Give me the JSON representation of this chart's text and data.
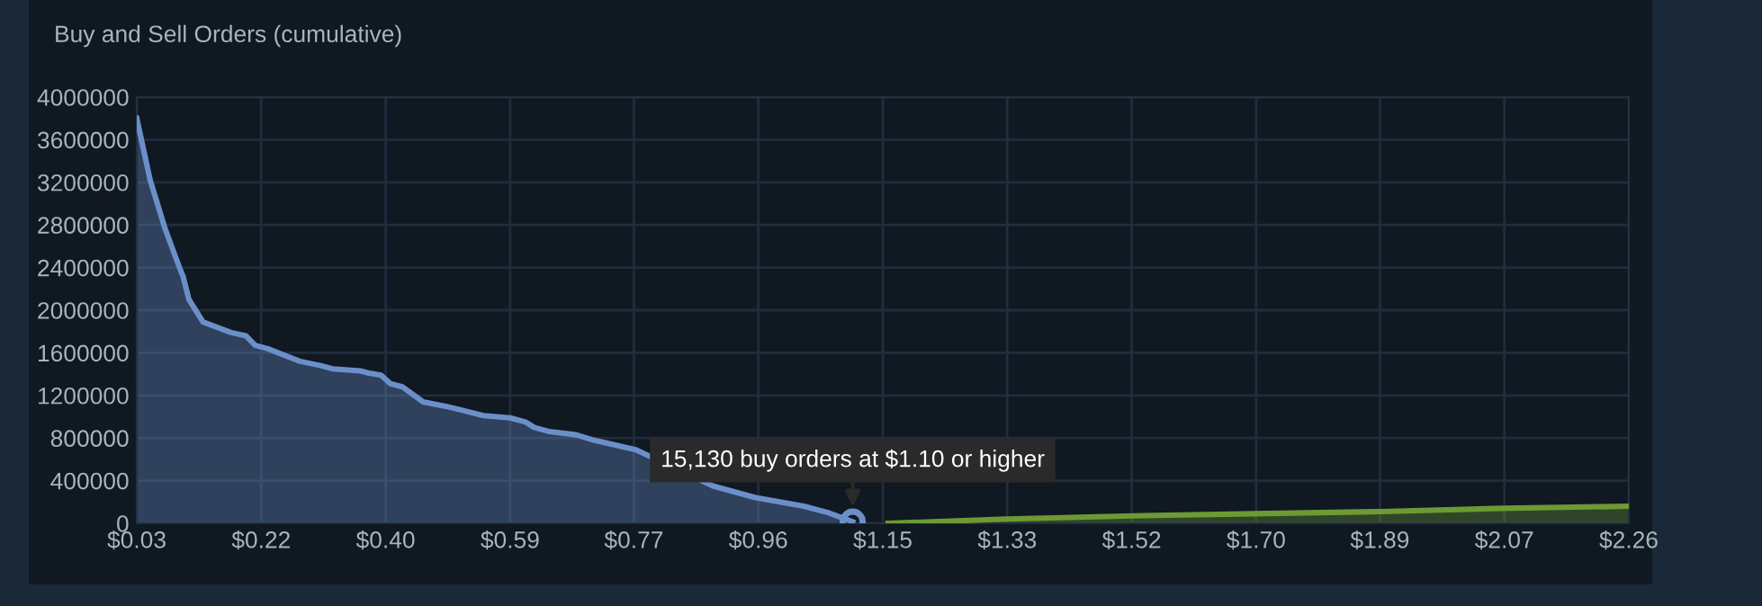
{
  "chart_data": {
    "type": "area",
    "title": "Buy and Sell Orders (cumulative)",
    "series": [
      {
        "color": "#6b8fc9",
        "x": [
          0.03,
          0.05,
          0.072,
          0.095,
          0.099,
          0.108,
          0.129,
          0.171,
          0.193,
          0.207,
          0.225,
          0.274,
          0.305,
          0.323,
          0.364,
          0.377,
          0.395,
          0.409,
          0.427,
          0.458,
          0.49,
          0.517,
          0.548,
          0.588,
          0.611,
          0.624,
          0.647,
          0.687,
          0.713,
          0.776,
          0.891,
          0.955,
          1.027,
          1.063,
          1.1
        ],
        "values": [
          3800000,
          3220000,
          2770000,
          2380000,
          2320000,
          2100000,
          1890000,
          1790000,
          1760000,
          1670000,
          1640000,
          1520000,
          1480000,
          1450000,
          1430000,
          1410000,
          1390000,
          1310000,
          1280000,
          1140000,
          1100000,
          1060000,
          1010000,
          990000,
          950000,
          900000,
          860000,
          830000,
          780000,
          690000,
          350000,
          240000,
          160000,
          100000,
          15130
        ]
      },
      {
        "color": "#6c9a33",
        "x": [
          1.153,
          1.33,
          1.52,
          1.7,
          1.89,
          2.07,
          2.26
        ],
        "values": [
          0,
          40000,
          70000,
          90000,
          110000,
          140000,
          160000
        ]
      }
    ],
    "xlim": [
      0.03,
      2.26
    ],
    "xticks": [
      {
        "value": 0.03,
        "label": "$0.03"
      },
      {
        "value": 0.216,
        "label": "$0.22"
      },
      {
        "value": 0.402,
        "label": "$0.40"
      },
      {
        "value": 0.588,
        "label": "$0.59"
      },
      {
        "value": 0.773,
        "label": "$0.77"
      },
      {
        "value": 0.959,
        "label": "$0.96"
      },
      {
        "value": 1.145,
        "label": "$1.15"
      },
      {
        "value": 1.331,
        "label": "$1.33"
      },
      {
        "value": 1.517,
        "label": "$1.52"
      },
      {
        "value": 1.703,
        "label": "$1.70"
      },
      {
        "value": 1.888,
        "label": "$1.89"
      },
      {
        "value": 2.074,
        "label": "$2.07"
      },
      {
        "value": 2.26,
        "label": "$2.26"
      }
    ],
    "ylim": [
      0,
      4000000
    ],
    "yticks": [
      0,
      400000,
      800000,
      1200000,
      1600000,
      2000000,
      2400000,
      2800000,
      3200000,
      3600000,
      4000000
    ],
    "grid": true,
    "annotations": [
      {
        "text": "15,130 buy orders at $1.10 or higher",
        "x": 1.1,
        "y": 15130
      }
    ]
  }
}
